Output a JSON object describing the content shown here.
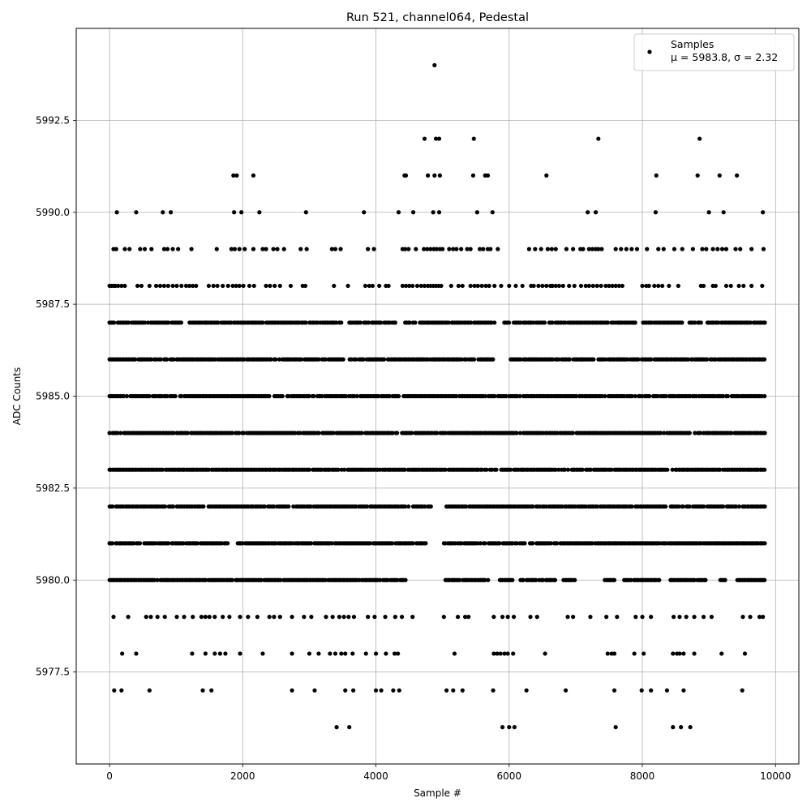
{
  "chart_data": {
    "type": "scatter",
    "title": "Run 521, channel064, Pedestal",
    "xlabel": "Sample #",
    "ylabel": "ADC Counts",
    "xlim": [
      -500,
      10350
    ],
    "ylim": [
      5975.0,
      5995.0
    ],
    "xticks": [
      0,
      2000,
      4000,
      6000,
      8000,
      10000
    ],
    "yticks": [
      5977.5,
      5980.0,
      5982.5,
      5985.0,
      5987.5,
      5990.0,
      5992.5
    ],
    "xtick_labels": [
      "0",
      "2000",
      "4000",
      "6000",
      "8000",
      "10000"
    ],
    "ytick_labels": [
      "5977.5",
      "5980.0",
      "5982.5",
      "5985.0",
      "5987.5",
      "5990.0",
      "5992.5"
    ],
    "grid": true,
    "legend": {
      "placement": "top-right",
      "label_line1": "Samples",
      "label_line2": "μ = 5983.8, σ = 2.32"
    },
    "series": [
      {
        "name": "Samples",
        "color": "#000000",
        "x_range": [
          0,
          9840
        ],
        "n_points": 9841,
        "points": [
          {
            "x": 4880,
            "y": 5994
          },
          {
            "x": 4730,
            "y": 5992
          },
          {
            "x": 4900,
            "y": 5992
          },
          {
            "x": 4950,
            "y": 5992
          },
          {
            "x": 5470,
            "y": 5992
          },
          {
            "x": 7340,
            "y": 5992
          },
          {
            "x": 8860,
            "y": 5992
          },
          {
            "x": 1860,
            "y": 5991
          },
          {
            "x": 1910,
            "y": 5991
          },
          {
            "x": 2160,
            "y": 5991
          },
          {
            "x": 4430,
            "y": 5991
          },
          {
            "x": 4450,
            "y": 5991
          },
          {
            "x": 4780,
            "y": 5991
          },
          {
            "x": 4880,
            "y": 5991
          },
          {
            "x": 4960,
            "y": 5991
          },
          {
            "x": 5460,
            "y": 5991
          },
          {
            "x": 5640,
            "y": 5991
          },
          {
            "x": 5680,
            "y": 5991
          },
          {
            "x": 6560,
            "y": 5991
          },
          {
            "x": 8210,
            "y": 5991
          },
          {
            "x": 8830,
            "y": 5991
          },
          {
            "x": 9160,
            "y": 5991
          },
          {
            "x": 9420,
            "y": 5991
          },
          {
            "x": 110,
            "y": 5990
          },
          {
            "x": 400,
            "y": 5990
          },
          {
            "x": 800,
            "y": 5990
          },
          {
            "x": 920,
            "y": 5990
          },
          {
            "x": 1870,
            "y": 5990
          },
          {
            "x": 1980,
            "y": 5990
          },
          {
            "x": 2250,
            "y": 5990
          },
          {
            "x": 2950,
            "y": 5990
          },
          {
            "x": 3820,
            "y": 5990
          },
          {
            "x": 4340,
            "y": 5990
          },
          {
            "x": 4560,
            "y": 5990
          },
          {
            "x": 4860,
            "y": 5990
          },
          {
            "x": 4950,
            "y": 5990
          },
          {
            "x": 5520,
            "y": 5990
          },
          {
            "x": 5750,
            "y": 5990
          },
          {
            "x": 7180,
            "y": 5990
          },
          {
            "x": 7300,
            "y": 5990
          },
          {
            "x": 8200,
            "y": 5990
          },
          {
            "x": 9000,
            "y": 5990
          },
          {
            "x": 9220,
            "y": 5990
          },
          {
            "x": 9810,
            "y": 5990
          },
          {
            "x": 3410,
            "y": 5976
          },
          {
            "x": 3600,
            "y": 5976
          },
          {
            "x": 5900,
            "y": 5976
          },
          {
            "x": 6000,
            "y": 5976
          },
          {
            "x": 6080,
            "y": 5976
          },
          {
            "x": 7600,
            "y": 5976
          },
          {
            "x": 8460,
            "y": 5976
          },
          {
            "x": 8580,
            "y": 5976
          },
          {
            "x": 8720,
            "y": 5976
          },
          {
            "x": 70,
            "y": 5977
          },
          {
            "x": 180,
            "y": 5977
          },
          {
            "x": 600,
            "y": 5977
          },
          {
            "x": 1400,
            "y": 5977
          },
          {
            "x": 1530,
            "y": 5977
          },
          {
            "x": 2740,
            "y": 5977
          },
          {
            "x": 3080,
            "y": 5977
          },
          {
            "x": 3540,
            "y": 5977
          },
          {
            "x": 3660,
            "y": 5977
          },
          {
            "x": 4000,
            "y": 5977
          },
          {
            "x": 4080,
            "y": 5977
          },
          {
            "x": 4260,
            "y": 5977
          },
          {
            "x": 4350,
            "y": 5977
          },
          {
            "x": 5060,
            "y": 5977
          },
          {
            "x": 5160,
            "y": 5977
          },
          {
            "x": 5300,
            "y": 5977
          },
          {
            "x": 5760,
            "y": 5977
          },
          {
            "x": 6260,
            "y": 5977
          },
          {
            "x": 6850,
            "y": 5977
          },
          {
            "x": 7580,
            "y": 5977
          },
          {
            "x": 7990,
            "y": 5977
          },
          {
            "x": 8130,
            "y": 5977
          },
          {
            "x": 8370,
            "y": 5977
          },
          {
            "x": 8620,
            "y": 5977
          },
          {
            "x": 9500,
            "y": 5977
          }
        ],
        "bands": [
          {
            "y": 5978,
            "xs": [
              190,
              400,
              1240,
              1440,
              1580,
              1660,
              1740,
              1960,
              2300,
              2740,
              3000,
              3140,
              3310,
              3390,
              3480,
              3540,
              3650,
              3850,
              4000,
              4150,
              4280,
              4330,
              5180,
              5770,
              5820,
              5870,
              5930,
              5980,
              6060,
              6540,
              7480,
              7540,
              7580,
              7880,
              8020,
              8460,
              8520,
              8560,
              8620,
              8780,
              9190,
              9540
            ]
          },
          {
            "y": 5979,
            "xs": [
              60,
              280,
              550,
              620,
              720,
              830,
              1010,
              1120,
              1250,
              1380,
              1440,
              1500,
              1580,
              1700,
              1800,
              1960,
              2080,
              2220,
              2400,
              2470,
              2560,
              2740,
              2920,
              3030,
              3250,
              3350,
              3450,
              3520,
              3590,
              3670,
              3880,
              3980,
              4140,
              4290,
              4390,
              4550,
              5020,
              5230,
              5340,
              5390,
              5770,
              5900,
              5980,
              6070,
              6320,
              6420,
              6880,
              6960,
              7220,
              7460,
              7620,
              7900,
              8000,
              8130,
              8470,
              8560,
              8660,
              8780,
              8920,
              9040,
              9510,
              9620,
              9760,
              9810
            ]
          },
          {
            "y": 5980,
            "xs_from": 0,
            "xs_to": 9840,
            "gaps": [
              [
                4460,
                5030
              ],
              [
                5700,
                5830
              ],
              [
                6100,
                6150
              ],
              [
                6700,
                6800
              ],
              [
                7000,
                7420
              ],
              [
                7600,
                7720
              ],
              [
                8300,
                8420
              ],
              [
                8950,
                9150
              ],
              [
                9250,
                9420
              ]
            ]
          },
          {
            "y": 5981,
            "xs_from": 0,
            "xs_to": 9840,
            "gaps": [
              [
                1800,
                1900
              ],
              [
                4750,
                5000
              ],
              [
                7250,
                7280
              ]
            ]
          },
          {
            "y": 5982,
            "xs_from": 0,
            "xs_to": 9840,
            "gaps": [
              [
                4830,
                5020
              ],
              [
                6800,
                6820
              ]
            ]
          },
          {
            "y": 5983,
            "xs_from": 0,
            "xs_to": 9840,
            "gaps": []
          },
          {
            "y": 5984,
            "xs_from": 0,
            "xs_to": 9840,
            "gaps": []
          },
          {
            "y": 5985,
            "xs_from": 0,
            "xs_to": 9840,
            "gaps": [
              [
                5800,
                5830
              ]
            ]
          },
          {
            "y": 5986,
            "xs_from": 0,
            "xs_to": 9840,
            "gaps": [
              [
                5800,
                6020
              ],
              [
                7300,
                7320
              ]
            ]
          },
          {
            "y": 5987,
            "xs_from": 0,
            "xs_to": 9840,
            "gaps": [
              [
                1080,
                1200
              ],
              [
                3500,
                3600
              ],
              [
                4300,
                4420
              ],
              [
                5780,
                5900
              ],
              [
                6010,
                6060
              ],
              [
                7900,
                8000
              ],
              [
                8600,
                8700
              ]
            ]
          },
          {
            "y": 5988,
            "xs": [
              0,
              30,
              60,
              90,
              130,
              180,
              230,
              420,
              480,
              600,
              700,
              760,
              820,
              880,
              950,
              1010,
              1080,
              1150,
              1200,
              1250,
              1300,
              1490,
              1560,
              1620,
              1700,
              1780,
              1850,
              1900,
              1950,
              2010,
              2100,
              2170,
              2350,
              2410,
              2480,
              2560,
              2720,
              2900,
              2940,
              3370,
              3580,
              3840,
              3900,
              3950,
              4050,
              4150,
              4190,
              4400,
              4450,
              4500,
              4550,
              4620,
              4680,
              4730,
              4780,
              4820,
              4860,
              4900,
              4940,
              4980,
              5130,
              5240,
              5300,
              5420,
              5480,
              5530,
              5590,
              5650,
              5700,
              5780,
              5880,
              6000,
              6100,
              6200,
              6330,
              6370,
              6440,
              6500,
              6560,
              6620,
              6650,
              6700,
              6750,
              6810,
              6900,
              6980,
              7080,
              7150,
              7200,
              7260,
              7320,
              7380,
              7450,
              7500,
              7550,
              7600,
              7650,
              7700,
              8000,
              8060,
              8100,
              8180,
              8240,
              8300,
              8400,
              8540,
              8880,
              8920,
              9060,
              9100,
              9260,
              9330,
              9450,
              9520,
              9640,
              9800
            ]
          },
          {
            "y": 5989,
            "xs": [
              60,
              100,
              230,
              300,
              460,
              530,
              630,
              820,
              870,
              950,
              1030,
              1230,
              1610,
              1830,
              1880,
              1950,
              2030,
              2160,
              2300,
              2350,
              2460,
              2520,
              2620,
              2870,
              2960,
              3340,
              3390,
              3470,
              3880,
              3970,
              4400,
              4440,
              4490,
              4600,
              4720,
              4770,
              4820,
              4870,
              4910,
              4960,
              5000,
              5100,
              5160,
              5210,
              5280,
              5370,
              5420,
              5560,
              5610,
              5680,
              5720,
              5830,
              6300,
              6390,
              6480,
              6580,
              6640,
              6700,
              6860,
              6960,
              7070,
              7110,
              7200,
              7250,
              7300,
              7340,
              7390,
              7600,
              7680,
              7760,
              7840,
              7920,
              8070,
              8240,
              8320,
              8480,
              8600,
              8760,
              8900,
              8960,
              9060,
              9130,
              9200,
              9260,
              9400,
              9470,
              9640,
              9820
            ]
          }
        ]
      }
    ]
  }
}
